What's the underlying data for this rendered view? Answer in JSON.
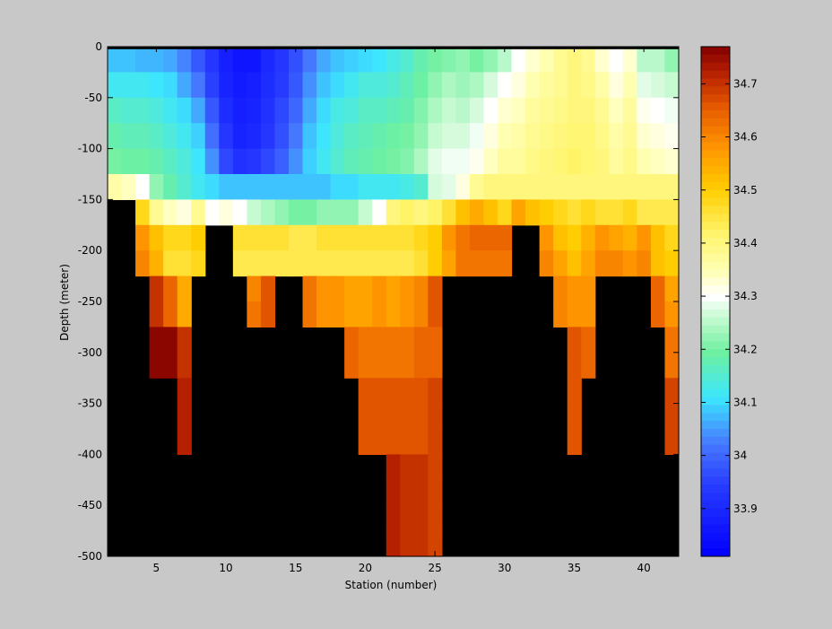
{
  "chart_data": {
    "type": "heatmap",
    "x": [
      2,
      3,
      4,
      5,
      6,
      7,
      8,
      9,
      10,
      11,
      12,
      13,
      14,
      15,
      16,
      17,
      18,
      19,
      20,
      21,
      22,
      23,
      24,
      25,
      26,
      27,
      28,
      29,
      30,
      31,
      32,
      33,
      34,
      35,
      36,
      37,
      38,
      39,
      40,
      41,
      42
    ],
    "y_levels": [
      0,
      -25,
      -50,
      -75,
      -100,
      -125,
      -150,
      -175,
      -200,
      -225,
      -250,
      -275,
      -300,
      -325,
      -350,
      -375,
      -400,
      -425,
      -450,
      -475
    ],
    "level_step": 25,
    "xlabel": "Station (number)",
    "ylabel": "Depth (meter)",
    "xlim": [
      1.5,
      42.5
    ],
    "ylim": [
      -500,
      0
    ],
    "xticks": [
      5,
      10,
      15,
      20,
      25,
      30,
      35,
      40
    ],
    "yticks": [
      0,
      -50,
      -100,
      -150,
      -200,
      -250,
      -300,
      -350,
      -400,
      -450,
      -500
    ],
    "colorbar": {
      "range": [
        33.81,
        34.77
      ],
      "ticks": [
        33.9,
        34,
        34.1,
        34.2,
        34.3,
        34.4,
        34.5,
        34.6,
        34.7
      ],
      "colormap": "jet-with-white-center"
    },
    "mask_color": "#000000",
    "values": [
      [
        34.08,
        34.08,
        34.07,
        34.07,
        34.06,
        34.03,
        33.98,
        33.93,
        33.88,
        33.86,
        33.86,
        33.9,
        33.93,
        33.97,
        34.02,
        34.06,
        34.08,
        34.09,
        34.1,
        34.11,
        34.13,
        34.15,
        34.18,
        34.2,
        34.21,
        34.22,
        34.2,
        34.22,
        34.25,
        34.3,
        34.33,
        34.35,
        34.38,
        34.4,
        34.38,
        34.33,
        34.3,
        34.33,
        34.25,
        34.25,
        34.22
      ],
      [
        34.12,
        34.12,
        34.12,
        34.11,
        34.1,
        34.06,
        34.02,
        33.95,
        33.89,
        33.87,
        33.88,
        33.91,
        33.94,
        33.98,
        34.04,
        34.08,
        34.1,
        34.12,
        34.14,
        34.14,
        34.15,
        34.17,
        34.19,
        34.22,
        34.24,
        34.23,
        34.24,
        34.27,
        34.3,
        34.32,
        34.35,
        34.37,
        34.38,
        34.4,
        34.39,
        34.36,
        34.32,
        34.35,
        34.28,
        34.27,
        34.26
      ],
      [
        34.16,
        34.15,
        34.15,
        34.14,
        34.12,
        34.1,
        34.06,
        33.98,
        33.91,
        33.88,
        33.89,
        33.92,
        33.96,
        34.0,
        34.06,
        34.1,
        34.13,
        34.14,
        34.16,
        34.16,
        34.17,
        34.18,
        34.21,
        34.24,
        34.26,
        34.25,
        34.27,
        34.3,
        34.33,
        34.34,
        34.37,
        34.38,
        34.39,
        34.4,
        34.4,
        34.38,
        34.34,
        34.37,
        34.31,
        34.3,
        34.29
      ],
      [
        34.18,
        34.17,
        34.17,
        34.16,
        34.14,
        34.12,
        34.09,
        34.01,
        33.93,
        33.89,
        33.9,
        33.93,
        33.97,
        34.02,
        34.08,
        34.11,
        34.14,
        34.16,
        34.17,
        34.18,
        34.19,
        34.2,
        34.22,
        34.26,
        34.27,
        34.27,
        34.29,
        34.32,
        34.35,
        34.36,
        34.38,
        34.39,
        34.4,
        34.41,
        34.41,
        34.39,
        34.36,
        34.38,
        34.33,
        34.32,
        34.31
      ],
      [
        34.2,
        34.19,
        34.19,
        34.18,
        34.16,
        34.14,
        34.11,
        34.04,
        33.96,
        33.92,
        33.93,
        33.96,
        33.99,
        34.04,
        34.09,
        34.12,
        34.15,
        34.17,
        34.18,
        34.19,
        34.2,
        34.21,
        34.24,
        34.28,
        34.29,
        34.29,
        34.31,
        34.34,
        34.37,
        34.37,
        34.39,
        34.4,
        34.41,
        34.42,
        34.41,
        34.4,
        34.37,
        34.39,
        34.35,
        34.34,
        34.33
      ],
      [
        34.36,
        34.34,
        34.3,
        34.22,
        34.18,
        34.15,
        34.12,
        34.1,
        34.08,
        34.08,
        34.08,
        34.08,
        34.08,
        34.08,
        34.08,
        34.08,
        34.1,
        34.1,
        34.12,
        34.12,
        34.12,
        34.13,
        34.15,
        34.27,
        34.28,
        34.32,
        34.38,
        34.4,
        34.4,
        34.4,
        34.4,
        34.4,
        34.4,
        34.4,
        34.4,
        34.4,
        34.4,
        34.4,
        34.4,
        34.4,
        34.4
      ],
      [
        null,
        null,
        34.48,
        34.38,
        34.34,
        34.32,
        34.38,
        34.3,
        34.32,
        34.3,
        34.26,
        34.24,
        34.22,
        34.2,
        34.2,
        34.22,
        34.22,
        34.22,
        34.26,
        34.3,
        34.4,
        34.42,
        34.4,
        34.42,
        34.46,
        34.52,
        34.55,
        34.52,
        34.48,
        34.56,
        34.52,
        34.5,
        34.48,
        34.46,
        34.48,
        34.46,
        34.46,
        34.48,
        34.44,
        34.44,
        34.44
      ],
      [
        null,
        null,
        34.58,
        34.52,
        34.48,
        34.48,
        34.5,
        null,
        null,
        34.46,
        34.46,
        34.46,
        34.46,
        34.44,
        34.44,
        34.46,
        34.46,
        34.46,
        34.46,
        34.46,
        34.46,
        34.46,
        34.48,
        34.5,
        34.58,
        34.62,
        34.64,
        34.64,
        34.64,
        null,
        null,
        34.58,
        34.52,
        34.5,
        34.54,
        34.58,
        34.56,
        34.54,
        34.58,
        34.52,
        34.48
      ],
      [
        null,
        null,
        34.6,
        34.54,
        34.46,
        34.46,
        34.48,
        null,
        null,
        34.44,
        34.44,
        34.44,
        34.44,
        34.44,
        34.44,
        34.44,
        34.44,
        34.44,
        34.44,
        34.44,
        34.44,
        34.44,
        34.46,
        34.5,
        34.56,
        34.62,
        34.62,
        34.62,
        34.62,
        null,
        null,
        34.6,
        34.56,
        34.52,
        34.56,
        34.6,
        34.6,
        34.58,
        34.6,
        34.52,
        34.5
      ],
      [
        null,
        null,
        null,
        34.7,
        34.64,
        34.55,
        null,
        null,
        null,
        null,
        34.6,
        34.66,
        null,
        null,
        34.62,
        34.58,
        34.58,
        34.56,
        34.56,
        34.58,
        34.56,
        34.58,
        34.6,
        34.66,
        null,
        null,
        null,
        null,
        null,
        null,
        null,
        null,
        34.6,
        34.58,
        34.58,
        null,
        null,
        null,
        null,
        34.64,
        34.56
      ],
      [
        null,
        null,
        null,
        34.7,
        34.64,
        34.55,
        null,
        null,
        null,
        null,
        34.62,
        34.66,
        null,
        null,
        34.62,
        34.58,
        34.58,
        34.56,
        34.56,
        34.58,
        34.56,
        34.58,
        34.6,
        34.66,
        null,
        null,
        null,
        null,
        null,
        null,
        null,
        null,
        34.6,
        34.58,
        34.58,
        null,
        null,
        null,
        null,
        34.64,
        34.58
      ],
      [
        null,
        null,
        null,
        34.76,
        34.76,
        34.7,
        null,
        null,
        null,
        null,
        null,
        null,
        null,
        null,
        null,
        null,
        null,
        34.64,
        34.62,
        34.62,
        34.62,
        34.62,
        34.64,
        34.64,
        null,
        null,
        null,
        null,
        null,
        null,
        null,
        null,
        null,
        34.66,
        34.64,
        null,
        null,
        null,
        null,
        null,
        34.62
      ],
      [
        null,
        null,
        null,
        34.76,
        34.76,
        34.7,
        null,
        null,
        null,
        null,
        null,
        null,
        null,
        null,
        null,
        null,
        null,
        34.64,
        34.62,
        34.62,
        34.62,
        34.62,
        34.64,
        34.64,
        null,
        null,
        null,
        null,
        null,
        null,
        null,
        null,
        null,
        34.66,
        34.64,
        null,
        null,
        null,
        null,
        null,
        34.62
      ],
      [
        null,
        null,
        null,
        null,
        null,
        34.72,
        null,
        null,
        null,
        null,
        null,
        null,
        null,
        null,
        null,
        null,
        null,
        null,
        34.66,
        34.66,
        34.66,
        34.66,
        34.66,
        34.68,
        null,
        null,
        null,
        null,
        null,
        null,
        null,
        null,
        null,
        34.66,
        null,
        null,
        null,
        null,
        null,
        null,
        34.68
      ],
      [
        null,
        null,
        null,
        null,
        null,
        34.72,
        null,
        null,
        null,
        null,
        null,
        null,
        null,
        null,
        null,
        null,
        null,
        null,
        34.66,
        34.66,
        34.66,
        34.66,
        34.66,
        34.68,
        null,
        null,
        null,
        null,
        null,
        null,
        null,
        null,
        null,
        34.66,
        null,
        null,
        null,
        null,
        null,
        null,
        34.68
      ],
      [
        null,
        null,
        null,
        null,
        null,
        34.72,
        null,
        null,
        null,
        null,
        null,
        null,
        null,
        null,
        null,
        null,
        null,
        null,
        34.66,
        34.66,
        34.66,
        34.66,
        34.66,
        34.68,
        null,
        null,
        null,
        null,
        null,
        null,
        null,
        null,
        null,
        34.66,
        null,
        null,
        null,
        null,
        null,
        null,
        34.68
      ],
      [
        null,
        null,
        null,
        null,
        null,
        null,
        null,
        null,
        null,
        null,
        null,
        null,
        null,
        null,
        null,
        null,
        null,
        null,
        null,
        null,
        34.72,
        34.7,
        34.7,
        34.68,
        null,
        null,
        null,
        null,
        null,
        null,
        null,
        null,
        null,
        null,
        null,
        null,
        null,
        null,
        null,
        null,
        null
      ],
      [
        null,
        null,
        null,
        null,
        null,
        null,
        null,
        null,
        null,
        null,
        null,
        null,
        null,
        null,
        null,
        null,
        null,
        null,
        null,
        null,
        34.72,
        34.7,
        34.7,
        34.68,
        null,
        null,
        null,
        null,
        null,
        null,
        null,
        null,
        null,
        null,
        null,
        null,
        null,
        null,
        null,
        null,
        null
      ],
      [
        null,
        null,
        null,
        null,
        null,
        null,
        null,
        null,
        null,
        null,
        null,
        null,
        null,
        null,
        null,
        null,
        null,
        null,
        null,
        null,
        34.72,
        34.7,
        34.7,
        34.68,
        null,
        null,
        null,
        null,
        null,
        null,
        null,
        null,
        null,
        null,
        null,
        null,
        null,
        null,
        null,
        null,
        null
      ],
      [
        null,
        null,
        null,
        null,
        null,
        null,
        null,
        null,
        null,
        null,
        null,
        null,
        null,
        null,
        null,
        null,
        null,
        null,
        null,
        null,
        34.72,
        34.7,
        34.7,
        34.68,
        null,
        null,
        null,
        null,
        null,
        null,
        null,
        null,
        null,
        null,
        null,
        null,
        null,
        null,
        null,
        null,
        null
      ]
    ]
  }
}
